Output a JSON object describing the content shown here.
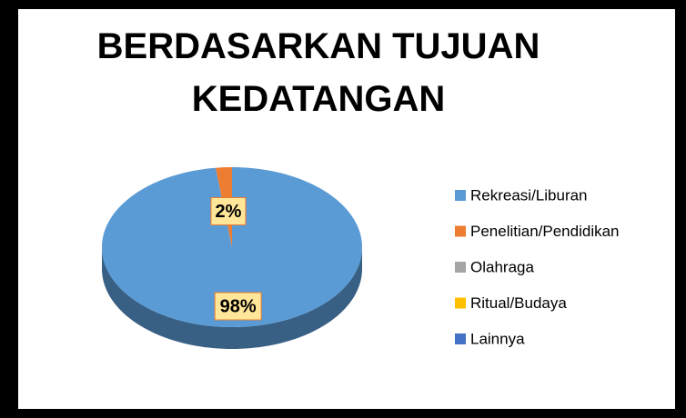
{
  "chart_data": {
    "type": "pie",
    "title": "BERDASARKAN TUJUAN KEDATANGAN",
    "categories": [
      "Rekreasi/Liburan",
      "Penelitian/Pendidikan",
      "Olahraga",
      "Ritual/Budaya",
      "Lainnya"
    ],
    "values": [
      98,
      2,
      0,
      0,
      0
    ],
    "value_labels": [
      "98%",
      "2%",
      null,
      null,
      null
    ],
    "colors": [
      "#5b9bd5",
      "#ed7d31",
      "#a5a5a5",
      "#ffc000",
      "#4472c4"
    ],
    "legend": "right"
  }
}
